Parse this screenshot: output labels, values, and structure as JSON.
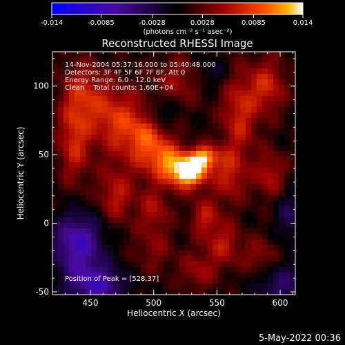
{
  "chart_data": {
    "type": "heatmap",
    "title": "Reconstructed RHESSI Image",
    "colorbar": {
      "ticks": [
        "-0.014",
        "-0.0085",
        "-0.0028",
        "0.0028",
        "0.0085",
        "0.014"
      ],
      "range": [
        -0.014,
        0.014
      ],
      "units": "(photons cm⁻² s⁻¹ asec⁻²)"
    },
    "xlabel": "Heliocentric X (arcsec)",
    "ylabel": "Heliocentric Y (arcsec)",
    "xlim": [
      420,
      612
    ],
    "ylim": [
      -52,
      125
    ],
    "xticks": [
      450,
      500,
      550,
      600
    ],
    "yticks": [
      -50,
      0,
      50,
      100
    ],
    "annotations": [
      "14-Nov-2004 05:37:16.000 to 05:40:48.000",
      "Detectors: 3F 4F 5F 6F 7F 8F, Att 0",
      "Energy Range: 6.0 - 12.0 keV",
      "Clean    Total counts: 1.60E+04"
    ],
    "peak_label": "Position of Peak = [528,37]",
    "peak": [
      528,
      37
    ],
    "blobs": [
      {
        "x": 528,
        "y": 37,
        "sx": 10,
        "sy": 8,
        "v": 0.014
      },
      {
        "x": 540,
        "y": 48,
        "sx": 8,
        "sy": 6,
        "v": 0.01
      },
      {
        "x": 512,
        "y": 45,
        "sx": 10,
        "sy": 10,
        "v": 0.007
      },
      {
        "x": 495,
        "y": 60,
        "sx": 12,
        "sy": 16,
        "v": 0.0075
      },
      {
        "x": 470,
        "y": 75,
        "sx": 14,
        "sy": 18,
        "v": 0.0065
      },
      {
        "x": 445,
        "y": 95,
        "sx": 12,
        "sy": 16,
        "v": 0.005
      },
      {
        "x": 437,
        "y": 60,
        "sx": 9,
        "sy": 22,
        "v": 0.006
      },
      {
        "x": 470,
        "y": 20,
        "sx": 10,
        "sy": 14,
        "v": 0.0055
      },
      {
        "x": 500,
        "y": 10,
        "sx": 9,
        "sy": 12,
        "v": 0.0045
      },
      {
        "x": 540,
        "y": 5,
        "sx": 8,
        "sy": 10,
        "v": 0.005
      },
      {
        "x": 560,
        "y": 35,
        "sx": 9,
        "sy": 14,
        "v": 0.0055
      },
      {
        "x": 568,
        "y": 80,
        "sx": 10,
        "sy": 22,
        "v": 0.006
      },
      {
        "x": 555,
        "y": -15,
        "sx": 10,
        "sy": 12,
        "v": 0.005
      },
      {
        "x": 590,
        "y": 100,
        "sx": 10,
        "sy": 14,
        "v": 0.006
      },
      {
        "x": 592,
        "y": 35,
        "sx": 9,
        "sy": 12,
        "v": 0.005
      },
      {
        "x": 585,
        "y": -25,
        "sx": 10,
        "sy": 10,
        "v": 0.004
      },
      {
        "x": 520,
        "y": 105,
        "sx": 14,
        "sy": 12,
        "v": 0.004
      },
      {
        "x": 500,
        "y": -20,
        "sx": 12,
        "sy": 12,
        "v": 0.003
      },
      {
        "x": 535,
        "y": -35,
        "sx": 10,
        "sy": 10,
        "v": 0.004
      },
      {
        "x": 440,
        "y": -15,
        "sx": 14,
        "sy": 16,
        "v": -0.009
      },
      {
        "x": 455,
        "y": -45,
        "sx": 16,
        "sy": 10,
        "v": -0.008
      },
      {
        "x": 600,
        "y": -45,
        "sx": 14,
        "sy": 12,
        "v": -0.005
      },
      {
        "x": 505,
        "y": 80,
        "sx": 8,
        "sy": 8,
        "v": -0.004
      },
      {
        "x": 608,
        "y": 5,
        "sx": 8,
        "sy": 14,
        "v": -0.004
      },
      {
        "x": 545,
        "y": 110,
        "sx": 10,
        "sy": 8,
        "v": -0.003
      }
    ]
  },
  "footer": {
    "date": "5-May-2022 00:36"
  }
}
